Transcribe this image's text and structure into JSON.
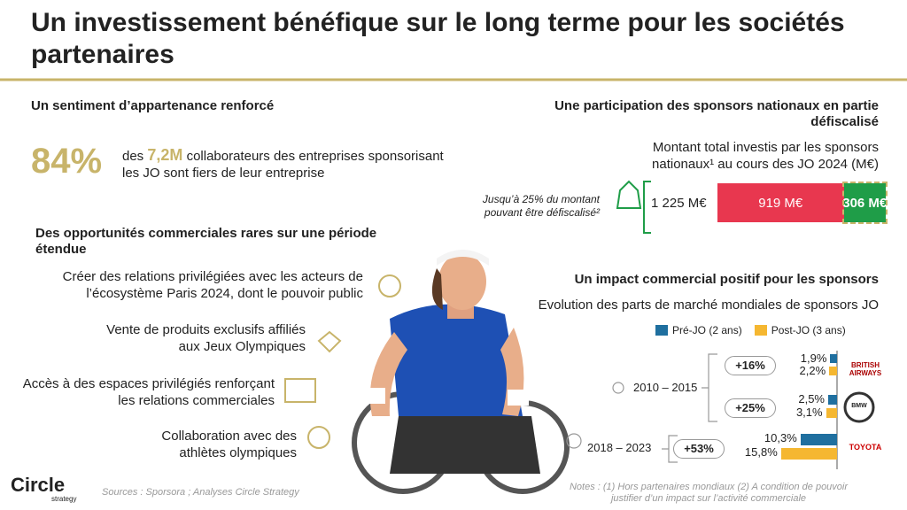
{
  "header": {
    "title": "Un investissement bénéfique sur le long terme pour les sociétés partenaires"
  },
  "belonging": {
    "heading": "Un sentiment d’appartenance renforcé",
    "stat": "84%",
    "text_before": "des",
    "highlight": "7,2M",
    "text_after": "collaborateurs des entreprises sponsorisant les JO sont fiers de leur entreprise"
  },
  "opportunities": {
    "heading": "Des opportunités commerciales rares sur une période étendue",
    "items": [
      "Créer des relations privilégiées avec les acteurs de l’écosystème Paris 2024, dont le pouvoir public",
      "Vente de produits exclusifs affiliés aux Jeux Olympiques",
      "Accès à des espaces privilégiés renforçant les relations commerciales",
      "Collaboration avec des athlètes olympiques"
    ]
  },
  "tax": {
    "heading": "Une participation des sponsors nationaux en partie défiscalisé",
    "subtitle": "Montant total investis par les sponsors nationaux¹ au cours des JO 2024 (M€)",
    "note": "Jusqu’à 25% du montant pouvant être défiscalisé²",
    "total_label": "1 225 M€",
    "segments": [
      {
        "value": 919,
        "label": "919 M€",
        "color": "#e8374f"
      },
      {
        "value": 306,
        "label": "306 M€",
        "color": "#1f9d48"
      }
    ]
  },
  "impact": {
    "heading": "Un impact commercial positif pour les sponsors",
    "subtitle": "Evolution des parts de marché mondiales de sponsors JO",
    "series": [
      {
        "name": "Pré-JO (2 ans)",
        "color": "#1f6f9f"
      },
      {
        "name": "Post-JO (3 ans)",
        "color": "#f5b731"
      }
    ],
    "periods": [
      "2010 – 2015",
      "2018 – 2023"
    ],
    "brands": [
      {
        "name": "BRITISH AIRWAYS",
        "values": [
          1.9,
          2.2
        ],
        "value_labels": [
          "1,9%",
          "2,2%"
        ],
        "growth": "+16%"
      },
      {
        "name": "BMW",
        "values": [
          2.5,
          3.1
        ],
        "value_labels": [
          "2,5%",
          "3,1%"
        ],
        "growth": "+25%"
      },
      {
        "name": "TOYOTA",
        "values": [
          10.3,
          15.8
        ],
        "value_labels": [
          "10,3%",
          "15,8%"
        ],
        "growth": "+53%"
      }
    ]
  },
  "footer": {
    "sources": "Sources : Sporsora ; Analyses Circle Strategy",
    "notes": "Notes : (1) Hors partenaires mondiaux (2) A condition de pouvoir justifier d’un impact sur l’activité commerciale",
    "logo": "Circle",
    "logo_sub": "strategy"
  }
}
